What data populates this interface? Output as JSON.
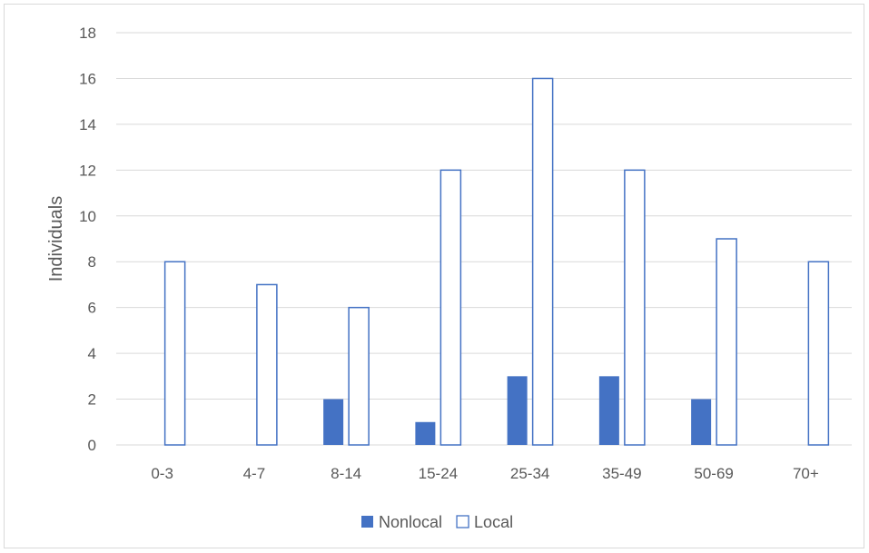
{
  "chart_data": {
    "type": "bar",
    "title": "",
    "xlabel": "",
    "ylabel": "Individuals",
    "ylim": [
      0,
      18
    ],
    "yticks": [
      0,
      2,
      4,
      6,
      8,
      10,
      12,
      14,
      16,
      18
    ],
    "grid": true,
    "legend_position": "bottom",
    "categories": [
      "0-3",
      "4-7",
      "8-14",
      "15-24",
      "25-34",
      "35-49",
      "50-69",
      "70+"
    ],
    "series": [
      {
        "name": "Nonlocal",
        "values": [
          0,
          0,
          2,
          1,
          3,
          3,
          2,
          0
        ],
        "color": "#4472c4",
        "style": "filled"
      },
      {
        "name": "Local",
        "values": [
          8,
          7,
          6,
          12,
          16,
          12,
          9,
          8
        ],
        "color": "#4472c4",
        "style": "outline"
      }
    ]
  }
}
